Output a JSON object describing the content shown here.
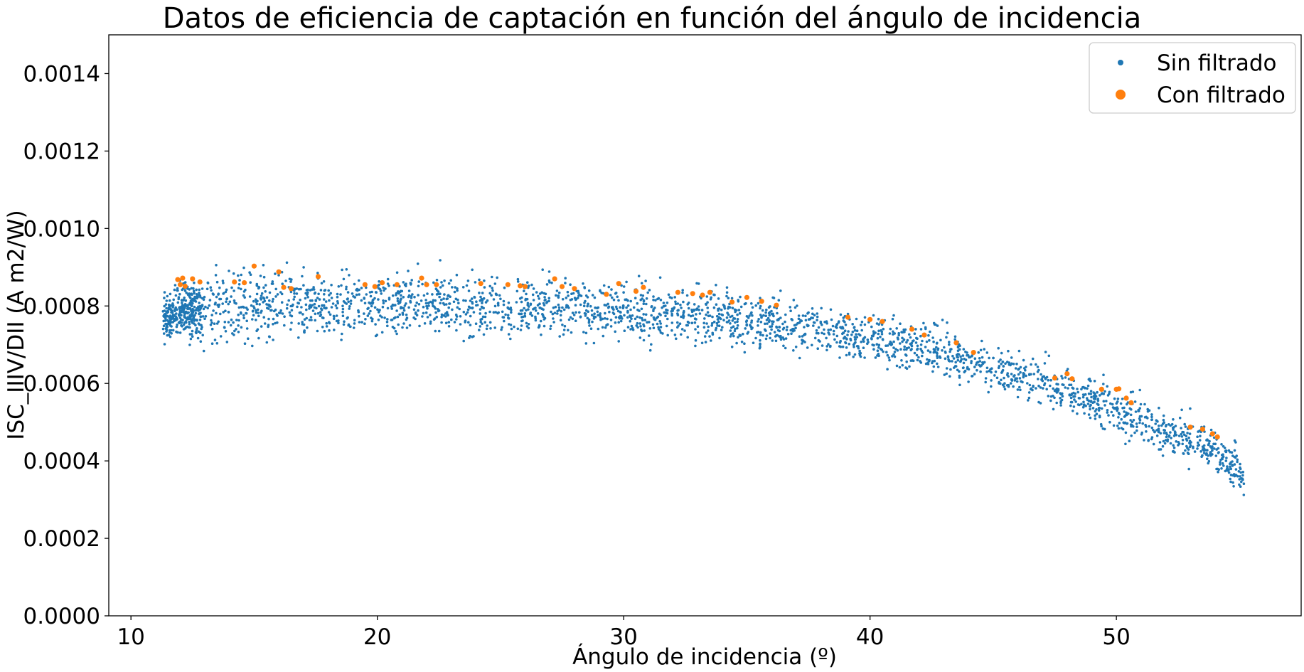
{
  "chart_data": {
    "type": "scatter",
    "title": "Datos de eficiencia de captación en función del ángulo de incidencia",
    "xlabel": "Ángulo de incidencia (º)",
    "ylabel": "ISC_IIIV/DII (A m2/W)",
    "xlim": [
      9.1,
      57.5
    ],
    "ylim": [
      0,
      0.0015
    ],
    "xticks": [
      10,
      20,
      30,
      40,
      50
    ],
    "xtick_labels": [
      "10",
      "20",
      "30",
      "40",
      "50"
    ],
    "yticks": [
      0,
      0.0002,
      0.0004,
      0.0006,
      0.0008,
      0.001,
      0.0012,
      0.0014
    ],
    "ytick_labels": [
      "0.0000",
      "0.0002",
      "0.0004",
      "0.0006",
      "0.0008",
      "0.0010",
      "0.0012",
      "0.0014"
    ],
    "grid": false,
    "legend_position": "top-right",
    "series": [
      {
        "name": "Sin filtrado",
        "color": "#1f77b4",
        "marker": "small-dot",
        "x_range": [
          11.3,
          55.2
        ],
        "point_count": 3000,
        "trend": [
          {
            "x": 11.3,
            "y": 0.00077
          },
          {
            "x": 12,
            "y": 0.00079
          },
          {
            "x": 15,
            "y": 0.0008
          },
          {
            "x": 20,
            "y": 0.00081
          },
          {
            "x": 25,
            "y": 0.0008
          },
          {
            "x": 30,
            "y": 0.00079
          },
          {
            "x": 35,
            "y": 0.00076
          },
          {
            "x": 40,
            "y": 0.00072
          },
          {
            "x": 43,
            "y": 0.00068
          },
          {
            "x": 45,
            "y": 0.00064
          },
          {
            "x": 48,
            "y": 0.00058
          },
          {
            "x": 50,
            "y": 0.00053
          },
          {
            "x": 52,
            "y": 0.00048
          },
          {
            "x": 54,
            "y": 0.00043
          },
          {
            "x": 55.2,
            "y": 0.00036
          }
        ],
        "spread": [
          {
            "x": 11.3,
            "y": 4e-05
          },
          {
            "x": 13,
            "y": 7e-05
          },
          {
            "x": 25,
            "y": 6e-05
          },
          {
            "x": 40,
            "y": 5e-05
          },
          {
            "x": 55.2,
            "y": 4e-05
          }
        ]
      },
      {
        "name": "Con filtrado",
        "color": "#ff7f0e",
        "marker": "dot",
        "points": [
          [
            11.9,
            0.000868
          ],
          [
            12.0,
            0.000855
          ],
          [
            12.1,
            0.000872
          ],
          [
            12.2,
            0.000851
          ],
          [
            12.5,
            0.00087
          ],
          [
            12.8,
            0.000862
          ],
          [
            14.2,
            0.000862
          ],
          [
            14.6,
            0.00086
          ],
          [
            15.0,
            0.000903
          ],
          [
            16.0,
            0.000888
          ],
          [
            16.2,
            0.000848
          ],
          [
            16.5,
            0.000845
          ],
          [
            17.6,
            0.000876
          ],
          [
            19.5,
            0.000855
          ],
          [
            19.9,
            0.00085
          ],
          [
            20.2,
            0.00086
          ],
          [
            20.8,
            0.000855
          ],
          [
            21.8,
            0.000872
          ],
          [
            22.0,
            0.000855
          ],
          [
            22.4,
            0.000855
          ],
          [
            24.2,
            0.000858
          ],
          [
            25.3,
            0.000855
          ],
          [
            25.8,
            0.000852
          ],
          [
            26.0,
            0.00085
          ],
          [
            27.2,
            0.00087
          ],
          [
            27.5,
            0.00085
          ],
          [
            28.0,
            0.000845
          ],
          [
            29.3,
            0.00083
          ],
          [
            29.8,
            0.000858
          ],
          [
            30.5,
            0.000838
          ],
          [
            30.8,
            0.000848
          ],
          [
            32.2,
            0.000835
          ],
          [
            32.8,
            0.000832
          ],
          [
            33.2,
            0.000828
          ],
          [
            33.5,
            0.000835
          ],
          [
            34.4,
            0.00081
          ],
          [
            35.0,
            0.000822
          ],
          [
            35.6,
            0.000812
          ],
          [
            36.2,
            0.000802
          ],
          [
            39.1,
            0.000771
          ],
          [
            40.0,
            0.000765
          ],
          [
            40.5,
            0.00076
          ],
          [
            41.7,
            0.00074
          ],
          [
            42.2,
            0.000725
          ],
          [
            43.5,
            0.000705
          ],
          [
            44.2,
            0.00068
          ],
          [
            47.5,
            0.000614
          ],
          [
            48.0,
            0.000625
          ],
          [
            48.2,
            0.000612
          ],
          [
            49.4,
            0.000585
          ],
          [
            50.0,
            0.000585
          ],
          [
            50.1,
            0.000586
          ],
          [
            50.4,
            0.000562
          ],
          [
            50.6,
            0.00055
          ],
          [
            53.0,
            0.000487
          ],
          [
            53.5,
            0.000482
          ],
          [
            53.9,
            0.00047
          ],
          [
            54.1,
            0.000462
          ]
        ]
      }
    ]
  }
}
